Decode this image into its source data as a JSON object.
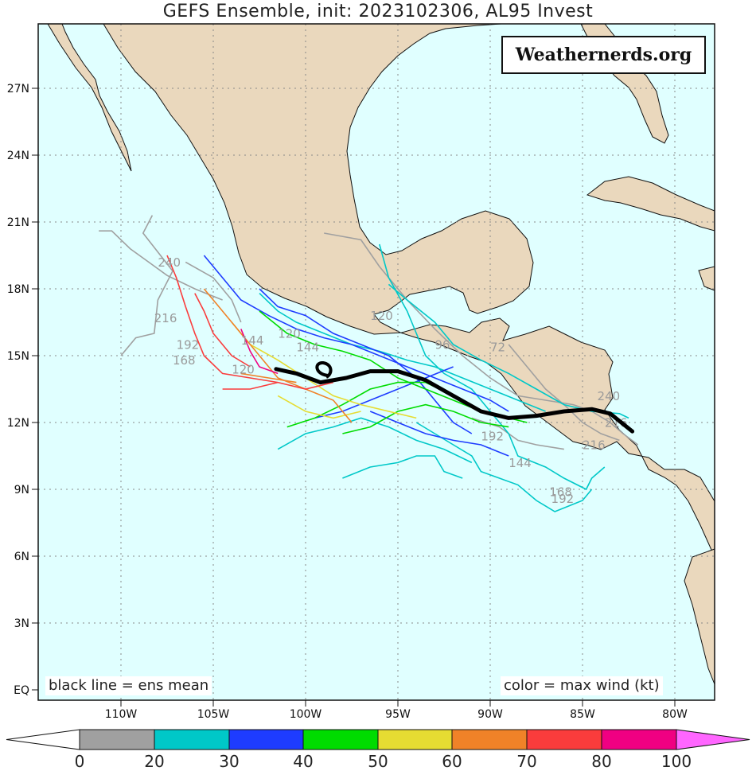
{
  "title": "GEFS Ensemble, init: 2023102306, AL95 Invest",
  "logo_text": "Weathernerds.org",
  "note_left": "black line = ens mean",
  "note_right": "color = max wind (kt)",
  "lat_labels": [
    "27N",
    "24N",
    "21N",
    "18N",
    "15N",
    "12N",
    "9N",
    "6N",
    "3N",
    "EQ"
  ],
  "lon_labels": [
    "110W",
    "105W",
    "100W",
    "95W",
    "90W",
    "85W",
    "80W"
  ],
  "colorbar": {
    "ticks": [
      "0",
      "20",
      "30",
      "40",
      "50",
      "60",
      "70",
      "80",
      "100"
    ],
    "bins": [
      {
        "from": 0,
        "to": 20,
        "color": "#a0a0a0"
      },
      {
        "from": 20,
        "to": 30,
        "color": "#00c8c8"
      },
      {
        "from": 30,
        "to": 40,
        "color": "#1e3cff"
      },
      {
        "from": 40,
        "to": 50,
        "color": "#00dc00"
      },
      {
        "from": 50,
        "to": 60,
        "color": "#e6dc32"
      },
      {
        "from": 60,
        "to": 70,
        "color": "#f08228"
      },
      {
        "from": 70,
        "to": 80,
        "color": "#fa3c3c"
      },
      {
        "from": 80,
        "to": 100,
        "color": "#f00082"
      }
    ],
    "over_color": "#ff66ff",
    "under_color": "#ffffff"
  },
  "colors": {
    "ocean": "#e0ffff",
    "land": "#ead8bd",
    "mean_track": "#000000"
  },
  "track_time_labels": [
    "240",
    "216",
    "192",
    "168",
    "144",
    "120",
    "120",
    "96",
    "72",
    "144",
    "168",
    "192",
    "216",
    "144",
    "120",
    "240",
    "216",
    "192"
  ],
  "mean_track_lonlat": [
    [
      -101.6,
      14.4
    ],
    [
      -100.5,
      14.2
    ],
    [
      -99.2,
      13.8
    ],
    [
      -97.8,
      14.0
    ],
    [
      -96.5,
      14.3
    ],
    [
      -95.0,
      14.3
    ],
    [
      -93.5,
      13.9
    ],
    [
      -92.0,
      13.2
    ],
    [
      -90.5,
      12.5
    ],
    [
      -89.0,
      12.2
    ],
    [
      -87.5,
      12.3
    ],
    [
      -86.0,
      12.5
    ],
    [
      -84.5,
      12.6
    ],
    [
      -83.5,
      12.4
    ],
    [
      -82.3,
      11.6
    ]
  ]
}
